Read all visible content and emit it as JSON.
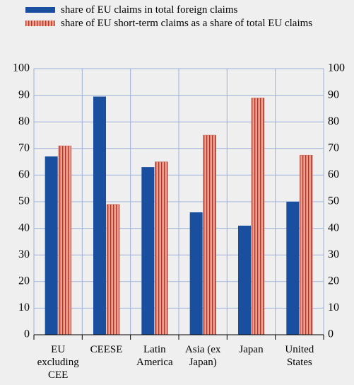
{
  "chart_data": {
    "type": "bar",
    "categories": [
      "EU excluding CEE",
      "CEESE",
      "Latin America",
      "Asia (ex Japan)",
      "Japan",
      "United States"
    ],
    "series": [
      {
        "name": "share of EU claims in total foreign claims",
        "color": "#1a4fa0",
        "values": [
          67,
          89.5,
          63,
          46,
          41,
          50
        ]
      },
      {
        "name": "share of EU short-term claims as a share of total EU claims",
        "color": "#e9a08e",
        "values": [
          71,
          49,
          65,
          75,
          89,
          67.5
        ]
      }
    ],
    "ylim": [
      0,
      100
    ],
    "yticks": [
      0,
      10,
      20,
      30,
      40,
      50,
      60,
      70,
      80,
      90,
      100
    ],
    "grid": true
  }
}
